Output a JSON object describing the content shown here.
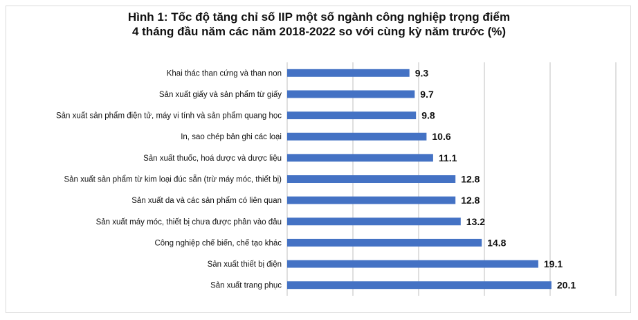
{
  "chart_data": {
    "type": "bar",
    "orientation": "horizontal",
    "title_line1": "Hình 1: Tốc độ tăng chỉ số IIP một số ngành công nghiệp trọng điểm",
    "title_line2": "4 tháng đầu năm các năm 2018-2022 so với cùng kỳ năm trước (%)",
    "categories": [
      "Khai thác than cứng và than non",
      "Sản xuất giấy và sản phẩm từ giấy",
      "Sản xuất sản phẩm điện tử, máy vi tính và sản phẩm quang học",
      "In, sao chép bản ghi các loại",
      "Sản xuất thuốc, hoá dược và dược liệu",
      "Sản xuất sản phẩm từ kim loại đúc sẵn (trừ máy móc, thiết bị)",
      "Sản xuất da và các sản phẩm có liên quan",
      "Sản xuất máy móc, thiết bị chưa được phân vào đâu",
      "Công nghiệp chế biến, chế tạo khác",
      "Sản xuất thiết bị điện",
      "Sản xuất trang phục"
    ],
    "values": [
      9.3,
      9.7,
      9.8,
      10.6,
      11.1,
      12.8,
      12.8,
      13.2,
      14.8,
      19.1,
      20.1
    ],
    "value_labels": [
      "9.3",
      "9.7",
      "9.8",
      "10.6",
      "11.1",
      "12.8",
      "12.8",
      "13.2",
      "14.8",
      "19.1",
      "20.1"
    ],
    "xlim": [
      0,
      25
    ],
    "grid": true,
    "bar_color": "#4472C4",
    "gridline_color": "#bfbfbf"
  }
}
